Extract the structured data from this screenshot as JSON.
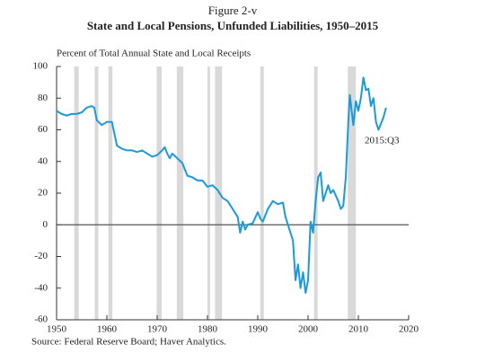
{
  "chart_data": {
    "type": "line",
    "figure_label": "Figure 2-v",
    "title": "State and Local Pensions, Unfunded Liabilities, 1950–2015",
    "y_label": "Percent of Total Annual State and Local Receipts",
    "source": "Source: Federal Reserve Board; Haver Analytics.",
    "annotation": "2015:Q3",
    "color": "#1a9bd7",
    "shade_color": "#d9d9d9",
    "zero_line": true,
    "shaded_periods": [
      [
        1953.5,
        1954.4
      ],
      [
        1957.6,
        1958.3
      ],
      [
        1960.3,
        1961.1
      ],
      [
        1969.9,
        1970.9
      ],
      [
        1973.9,
        1975.2
      ],
      [
        1980.0,
        1980.5
      ],
      [
        1981.5,
        1982.9
      ],
      [
        1990.5,
        1991.2
      ],
      [
        2001.2,
        2001.9
      ],
      [
        2007.9,
        2009.5
      ]
    ],
    "x": [
      1950,
      1951,
      1952,
      1953,
      1954,
      1955,
      1956,
      1957,
      1957.5,
      1958,
      1959,
      1960,
      1961,
      1962,
      1963,
      1964,
      1965,
      1966,
      1967,
      1968,
      1969,
      1970,
      1971,
      1971.5,
      1972,
      1972.5,
      1973,
      1974,
      1975,
      1976,
      1977,
      1978,
      1979,
      1980,
      1981,
      1982,
      1983,
      1984,
      1985,
      1986,
      1986.5,
      1987,
      1987.5,
      1988,
      1989,
      1990,
      1990.5,
      1991,
      1992,
      1993,
      1994,
      1995,
      1995.5,
      1996,
      1997,
      1997.5,
      1998,
      1998.5,
      1999,
      1999.5,
      2000,
      2000.5,
      2001,
      2001.5,
      2002,
      2002.5,
      2003,
      2004,
      2004.5,
      2005,
      2006,
      2006.5,
      2007,
      2007.5,
      2008,
      2008.3,
      2009,
      2009.5,
      2010,
      2010.5,
      2011,
      2011.5,
      2012,
      2012.5,
      2013,
      2013.5,
      2014,
      2014.5,
      2015,
      2015.5
    ],
    "values": [
      72,
      70,
      69,
      70,
      70,
      71,
      74,
      75,
      74,
      66,
      63,
      65,
      65,
      50,
      48,
      47,
      47,
      46,
      47,
      45,
      43,
      44,
      47,
      49,
      45,
      42,
      45,
      42,
      39,
      31,
      30,
      28,
      28,
      24,
      25,
      22,
      17,
      15,
      10,
      5,
      -5,
      2,
      -3,
      0,
      1,
      8,
      4,
      2,
      10,
      15,
      13,
      14,
      5,
      0,
      -10,
      -35,
      -25,
      -40,
      -30,
      -43,
      -35,
      2,
      -5,
      15,
      30,
      33,
      15,
      25,
      20,
      22,
      15,
      10,
      12,
      30,
      65,
      82,
      63,
      78,
      72,
      80,
      93,
      85,
      86,
      75,
      80,
      65,
      60,
      64,
      68,
      74
    ],
    "xlim": [
      1950,
      2020
    ],
    "xticks": [
      1950,
      1960,
      1970,
      1980,
      1990,
      2000,
      2010,
      2020
    ],
    "ylim": [
      -60,
      100
    ],
    "yticks": [
      -60,
      -40,
      -20,
      0,
      20,
      40,
      60,
      80,
      100
    ]
  }
}
